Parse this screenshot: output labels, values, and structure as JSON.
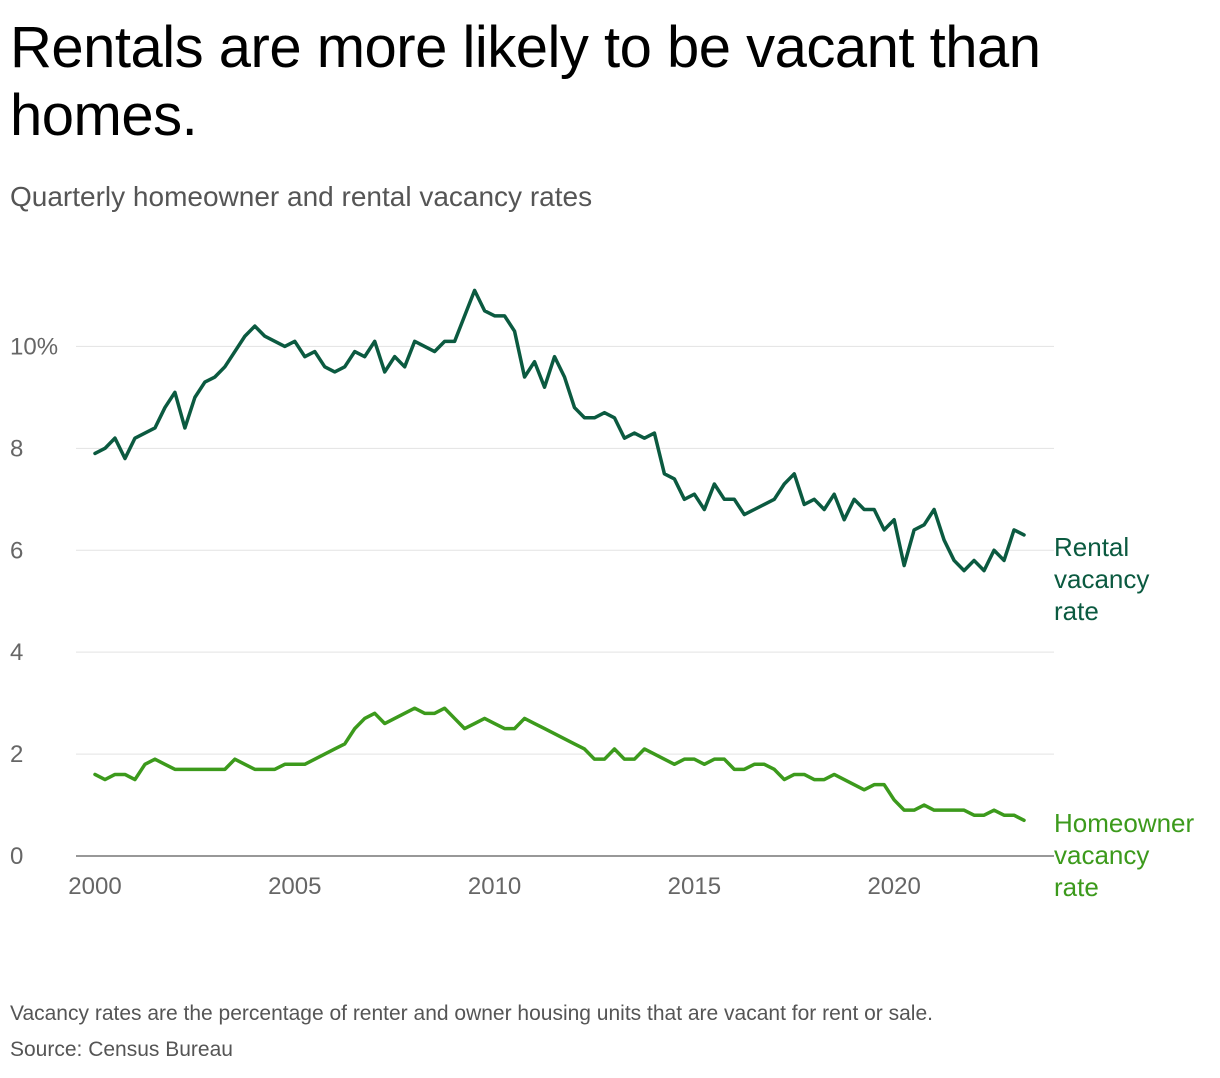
{
  "header": {
    "title": "Rentals are more likely to be vacant than homes.",
    "subtitle": "Quarterly homeowner and rental vacancy rates"
  },
  "footer": {
    "note": "Vacancy rates are the percentage of renter and owner housing units that are vacant for rent or sale.",
    "source": "Source: Census Bureau"
  },
  "colors": {
    "rental": "#0b5a40",
    "homeowner": "#3c9a1c",
    "grid": "#e3e3e3",
    "axis": "#777777",
    "tick_text": "#666666"
  },
  "chart_data": {
    "type": "line",
    "title": "Rentals are more likely to be vacant than homes.",
    "subtitle": "Quarterly homeowner and rental vacancy rates",
    "xlabel": "",
    "ylabel": "",
    "xlim": [
      2000,
      2023.5
    ],
    "ylim": [
      0,
      11.5
    ],
    "grid": true,
    "x_ticks": [
      2000,
      2005,
      2010,
      2015,
      2020
    ],
    "x_tick_labels": [
      "2000",
      "2005",
      "2010",
      "2015",
      "2020"
    ],
    "y_ticks": [
      0,
      2,
      4,
      6,
      8,
      10
    ],
    "y_tick_labels": [
      "0",
      "2",
      "4",
      "6",
      "8",
      "10%"
    ],
    "x_start": 2000,
    "x_step": 0.25,
    "series": [
      {
        "name": "Rental vacancy rate",
        "label_lines": [
          "Rental",
          "vacancy",
          "rate"
        ],
        "values": [
          7.9,
          8.0,
          8.2,
          7.8,
          8.2,
          8.3,
          8.4,
          8.8,
          9.1,
          8.4,
          9.0,
          9.3,
          9.4,
          9.6,
          9.9,
          10.2,
          10.4,
          10.2,
          10.1,
          10.0,
          10.1,
          9.8,
          9.9,
          9.6,
          9.5,
          9.6,
          9.9,
          9.8,
          10.1,
          9.5,
          9.8,
          9.6,
          10.1,
          10.0,
          9.9,
          10.1,
          10.1,
          10.6,
          11.1,
          10.7,
          10.6,
          10.6,
          10.3,
          9.4,
          9.7,
          9.2,
          9.8,
          9.4,
          8.8,
          8.6,
          8.6,
          8.7,
          8.6,
          8.2,
          8.3,
          8.2,
          8.3,
          7.5,
          7.4,
          7.0,
          7.1,
          6.8,
          7.3,
          7.0,
          7.0,
          6.7,
          6.8,
          6.9,
          7.0,
          7.3,
          7.5,
          6.9,
          7.0,
          6.8,
          7.1,
          6.6,
          7.0,
          6.8,
          6.8,
          6.4,
          6.6,
          5.7,
          6.4,
          6.5,
          6.8,
          6.2,
          5.8,
          5.6,
          5.8,
          5.6,
          6.0,
          5.8,
          6.4,
          6.3
        ]
      },
      {
        "name": "Homeowner vacancy rate",
        "label_lines": [
          "Homeowner",
          "vacancy",
          "rate"
        ],
        "values": [
          1.6,
          1.5,
          1.6,
          1.6,
          1.5,
          1.8,
          1.9,
          1.8,
          1.7,
          1.7,
          1.7,
          1.7,
          1.7,
          1.7,
          1.9,
          1.8,
          1.7,
          1.7,
          1.7,
          1.8,
          1.8,
          1.8,
          1.9,
          2.0,
          2.1,
          2.2,
          2.5,
          2.7,
          2.8,
          2.6,
          2.7,
          2.8,
          2.9,
          2.8,
          2.8,
          2.9,
          2.7,
          2.5,
          2.6,
          2.7,
          2.6,
          2.5,
          2.5,
          2.7,
          2.6,
          2.5,
          2.4,
          2.3,
          2.2,
          2.1,
          1.9,
          1.9,
          2.1,
          1.9,
          1.9,
          2.1,
          2.0,
          1.9,
          1.8,
          1.9,
          1.9,
          1.8,
          1.9,
          1.9,
          1.7,
          1.7,
          1.8,
          1.8,
          1.7,
          1.5,
          1.6,
          1.6,
          1.5,
          1.5,
          1.6,
          1.5,
          1.4,
          1.3,
          1.4,
          1.4,
          1.1,
          0.9,
          0.9,
          1.0,
          0.9,
          0.9,
          0.9,
          0.9,
          0.8,
          0.8,
          0.9,
          0.8,
          0.8,
          0.7
        ]
      }
    ]
  }
}
